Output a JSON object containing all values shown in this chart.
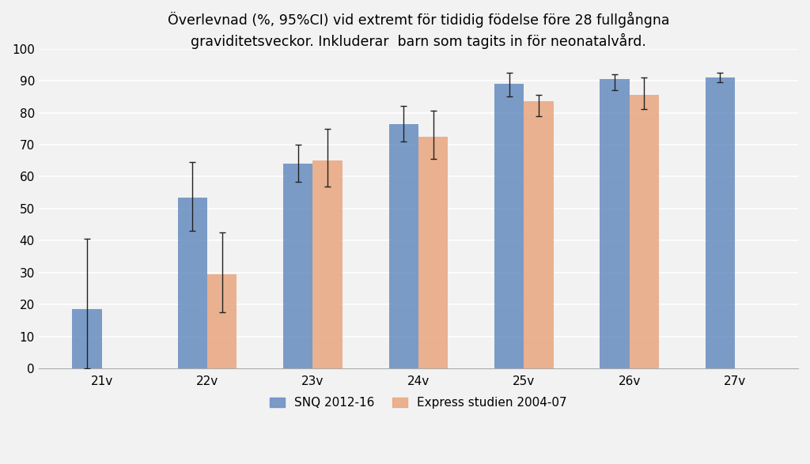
{
  "title": "Överlevnad (%, 95%CI) vid extremt för tididig födelse före 28 fullgångna\ngraviditetsveckor. Inkluderar  barn som tagits in för neonatalvård.",
  "categories": [
    "21v",
    "22v",
    "23v",
    "24v",
    "25v",
    "26v",
    "27v"
  ],
  "snq_values": [
    18.5,
    53.5,
    64.0,
    76.5,
    89.0,
    90.5,
    91.0
  ],
  "snq_yerr_low": [
    18.5,
    10.5,
    5.5,
    5.5,
    4.0,
    3.5,
    1.5
  ],
  "snq_yerr_high": [
    22.0,
    11.0,
    6.0,
    5.5,
    3.5,
    1.5,
    1.5
  ],
  "express_values": [
    null,
    29.5,
    65.0,
    72.5,
    83.5,
    85.5,
    null
  ],
  "express_yerr_low": [
    null,
    12.0,
    8.0,
    7.0,
    4.5,
    4.5,
    null
  ],
  "express_yerr_high": [
    null,
    13.0,
    10.0,
    8.0,
    2.0,
    5.5,
    null
  ],
  "snq_color": "#6B8FC2",
  "express_color": "#E8A882",
  "bar_width": 0.28,
  "ylim": [
    0,
    100
  ],
  "yticks": [
    0,
    10,
    20,
    30,
    40,
    50,
    60,
    70,
    80,
    90,
    100
  ],
  "legend_snq": "SNQ 2012-16",
  "legend_express": "Express studien 2004-07",
  "background_color": "#F2F2F2",
  "plot_bg_color": "#F2F2F2",
  "grid_color": "#FFFFFF",
  "title_fontsize": 12.5,
  "tick_fontsize": 11,
  "legend_fontsize": 11
}
